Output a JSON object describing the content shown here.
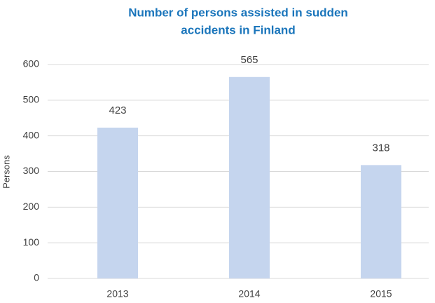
{
  "chart_data": {
    "type": "bar",
    "title": [
      "Number of persons assisted in sudden",
      "accidents in Finland"
    ],
    "y_label": "Persons",
    "categories": [
      "2013",
      "2014",
      "2015"
    ],
    "values": [
      423,
      565,
      318
    ],
    "color": "#c5d5ee",
    "ylim": [
      0,
      600
    ],
    "yticks": [
      0,
      100,
      200,
      300,
      400,
      500,
      600
    ],
    "grid": true
  }
}
